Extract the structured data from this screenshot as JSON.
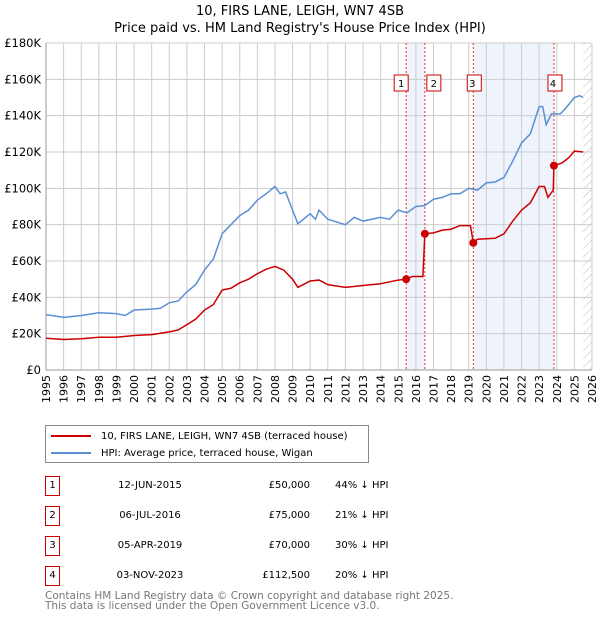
{
  "chart_data": {
    "type": "line",
    "title": "10, FIRS LANE, LEIGH, WN7 4SB",
    "subtitle": "Price paid vs. HM Land Registry's House Price Index (HPI)",
    "xlim": [
      1995,
      2026
    ],
    "ylim": [
      0,
      180000
    ],
    "x_ticks": [
      "1995",
      "1996",
      "1997",
      "1998",
      "1999",
      "2000",
      "2001",
      "2002",
      "2003",
      "2004",
      "2005",
      "2006",
      "2007",
      "2008",
      "2009",
      "2010",
      "2011",
      "2012",
      "2013",
      "2014",
      "2015",
      "2016",
      "2017",
      "2018",
      "2019",
      "2020",
      "2021",
      "2022",
      "2023",
      "2024",
      "2025",
      "2026"
    ],
    "y_ticks": [
      {
        "v": 0,
        "label": "£0"
      },
      {
        "v": 20000,
        "label": "£20K"
      },
      {
        "v": 40000,
        "label": "£40K"
      },
      {
        "v": 60000,
        "label": "£60K"
      },
      {
        "v": 80000,
        "label": "£80K"
      },
      {
        "v": 100000,
        "label": "£100K"
      },
      {
        "v": 120000,
        "label": "£120K"
      },
      {
        "v": 140000,
        "label": "£140K"
      },
      {
        "v": 160000,
        "label": "£160K"
      },
      {
        "v": 180000,
        "label": "£180K"
      }
    ],
    "grid": true,
    "series": [
      {
        "name": "10, FIRS LANE, LEIGH, WN7 4SB (terraced house)",
        "color": "#cc0000",
        "points": [
          [
            1995,
            17500
          ],
          [
            1996,
            16800
          ],
          [
            1997,
            17200
          ],
          [
            1998,
            18000
          ],
          [
            1999,
            18000
          ],
          [
            2000,
            19000
          ],
          [
            2001,
            19500
          ],
          [
            2002,
            21000
          ],
          [
            2002.5,
            22000
          ],
          [
            2003,
            25000
          ],
          [
            2003.5,
            28000
          ],
          [
            2004,
            33000
          ],
          [
            2004.5,
            36000
          ],
          [
            2005,
            44000
          ],
          [
            2005.5,
            45000
          ],
          [
            2006,
            48000
          ],
          [
            2006.5,
            50000
          ],
          [
            2007,
            53000
          ],
          [
            2007.5,
            55500
          ],
          [
            2008,
            57000
          ],
          [
            2008.5,
            55000
          ],
          [
            2009,
            50000
          ],
          [
            2009.3,
            45500
          ],
          [
            2010,
            49000
          ],
          [
            2010.5,
            49500
          ],
          [
            2011,
            47000
          ],
          [
            2012,
            45500
          ],
          [
            2013,
            46500
          ],
          [
            2014,
            47500
          ],
          [
            2015,
            49500
          ],
          [
            2015.45,
            50000
          ],
          [
            2015.8,
            51500
          ],
          [
            2016.4,
            51500
          ],
          [
            2016.51,
            75000
          ],
          [
            2017,
            75500
          ],
          [
            2017.5,
            77000
          ],
          [
            2018,
            77500
          ],
          [
            2018.5,
            79500
          ],
          [
            2019.1,
            79500
          ],
          [
            2019.26,
            70000
          ],
          [
            2019.5,
            72000
          ],
          [
            2020.5,
            72500
          ],
          [
            2021,
            75000
          ],
          [
            2021.5,
            82000
          ],
          [
            2022,
            88000
          ],
          [
            2022.5,
            92000
          ],
          [
            2023,
            101000
          ],
          [
            2023.3,
            101000
          ],
          [
            2023.5,
            95000
          ],
          [
            2023.8,
            99000
          ],
          [
            2023.84,
            112500
          ],
          [
            2024.3,
            114000
          ],
          [
            2024.7,
            117000
          ],
          [
            2025,
            120500
          ],
          [
            2025.5,
            120000
          ]
        ]
      },
      {
        "name": "HPI: Average price, terraced house, Wigan",
        "color": "#5b8fd4",
        "points": [
          [
            1995,
            30500
          ],
          [
            1996,
            29000
          ],
          [
            1997,
            30000
          ],
          [
            1998,
            31500
          ],
          [
            1999,
            31000
          ],
          [
            1999.5,
            30000
          ],
          [
            2000,
            33000
          ],
          [
            2001,
            33500
          ],
          [
            2001.5,
            34000
          ],
          [
            2002,
            37000
          ],
          [
            2002.5,
            38000
          ],
          [
            2003,
            43000
          ],
          [
            2003.5,
            47000
          ],
          [
            2004,
            55000
          ],
          [
            2004.5,
            61000
          ],
          [
            2005,
            75000
          ],
          [
            2005.3,
            78000
          ],
          [
            2006,
            85000
          ],
          [
            2006.5,
            88000
          ],
          [
            2007,
            93500
          ],
          [
            2007.5,
            97000
          ],
          [
            2008,
            101000
          ],
          [
            2008.3,
            97000
          ],
          [
            2008.6,
            98000
          ],
          [
            2009,
            88000
          ],
          [
            2009.3,
            80500
          ],
          [
            2010,
            86000
          ],
          [
            2010.3,
            83000
          ],
          [
            2010.5,
            88000
          ],
          [
            2011,
            83000
          ],
          [
            2012,
            80000
          ],
          [
            2012.5,
            84000
          ],
          [
            2013,
            82000
          ],
          [
            2014,
            84000
          ],
          [
            2014.5,
            83000
          ],
          [
            2015,
            88000
          ],
          [
            2015.5,
            86500
          ],
          [
            2016,
            90000
          ],
          [
            2016.5,
            90500
          ],
          [
            2017,
            94000
          ],
          [
            2017.5,
            95000
          ],
          [
            2018,
            97000
          ],
          [
            2018.5,
            97000
          ],
          [
            2019,
            100000
          ],
          [
            2019.5,
            99000
          ],
          [
            2020,
            103000
          ],
          [
            2020.5,
            103500
          ],
          [
            2021,
            106000
          ],
          [
            2021.5,
            115000
          ],
          [
            2022,
            125000
          ],
          [
            2022.5,
            130000
          ],
          [
            2023,
            145000
          ],
          [
            2023.2,
            145000
          ],
          [
            2023.4,
            135000
          ],
          [
            2023.7,
            141000
          ],
          [
            2024.2,
            141000
          ],
          [
            2024.5,
            144000
          ],
          [
            2025,
            150000
          ],
          [
            2025.3,
            151000
          ],
          [
            2025.5,
            150000
          ]
        ]
      }
    ],
    "sales": [
      {
        "id": "1",
        "x": 2015.45,
        "price": 50000,
        "date": "12-JUN-2015",
        "price_label": "£50,000",
        "hpi": "44% ↓ HPI"
      },
      {
        "id": "2",
        "x": 2016.51,
        "price": 75000,
        "date": "06-JUL-2016",
        "price_label": "£75,000",
        "hpi": "21% ↓ HPI"
      },
      {
        "id": "3",
        "x": 2019.26,
        "price": 70000,
        "date": "05-APR-2019",
        "price_label": "£70,000",
        "hpi": "30% ↓ HPI"
      },
      {
        "id": "4",
        "x": 2023.84,
        "price": 112500,
        "date": "03-NOV-2023",
        "price_label": "£112,500",
        "hpi": "20% ↓ HPI"
      }
    ],
    "shaded_ranges": [
      [
        2015.45,
        2016.51
      ],
      [
        2019.26,
        2023.84
      ]
    ],
    "forecast_from": 2025.5,
    "legend_placement": "below"
  },
  "footer": {
    "line1": "Contains HM Land Registry data © Crown copyright and database right 2025.",
    "line2": "This data is licensed under the Open Government Licence v3.0."
  }
}
